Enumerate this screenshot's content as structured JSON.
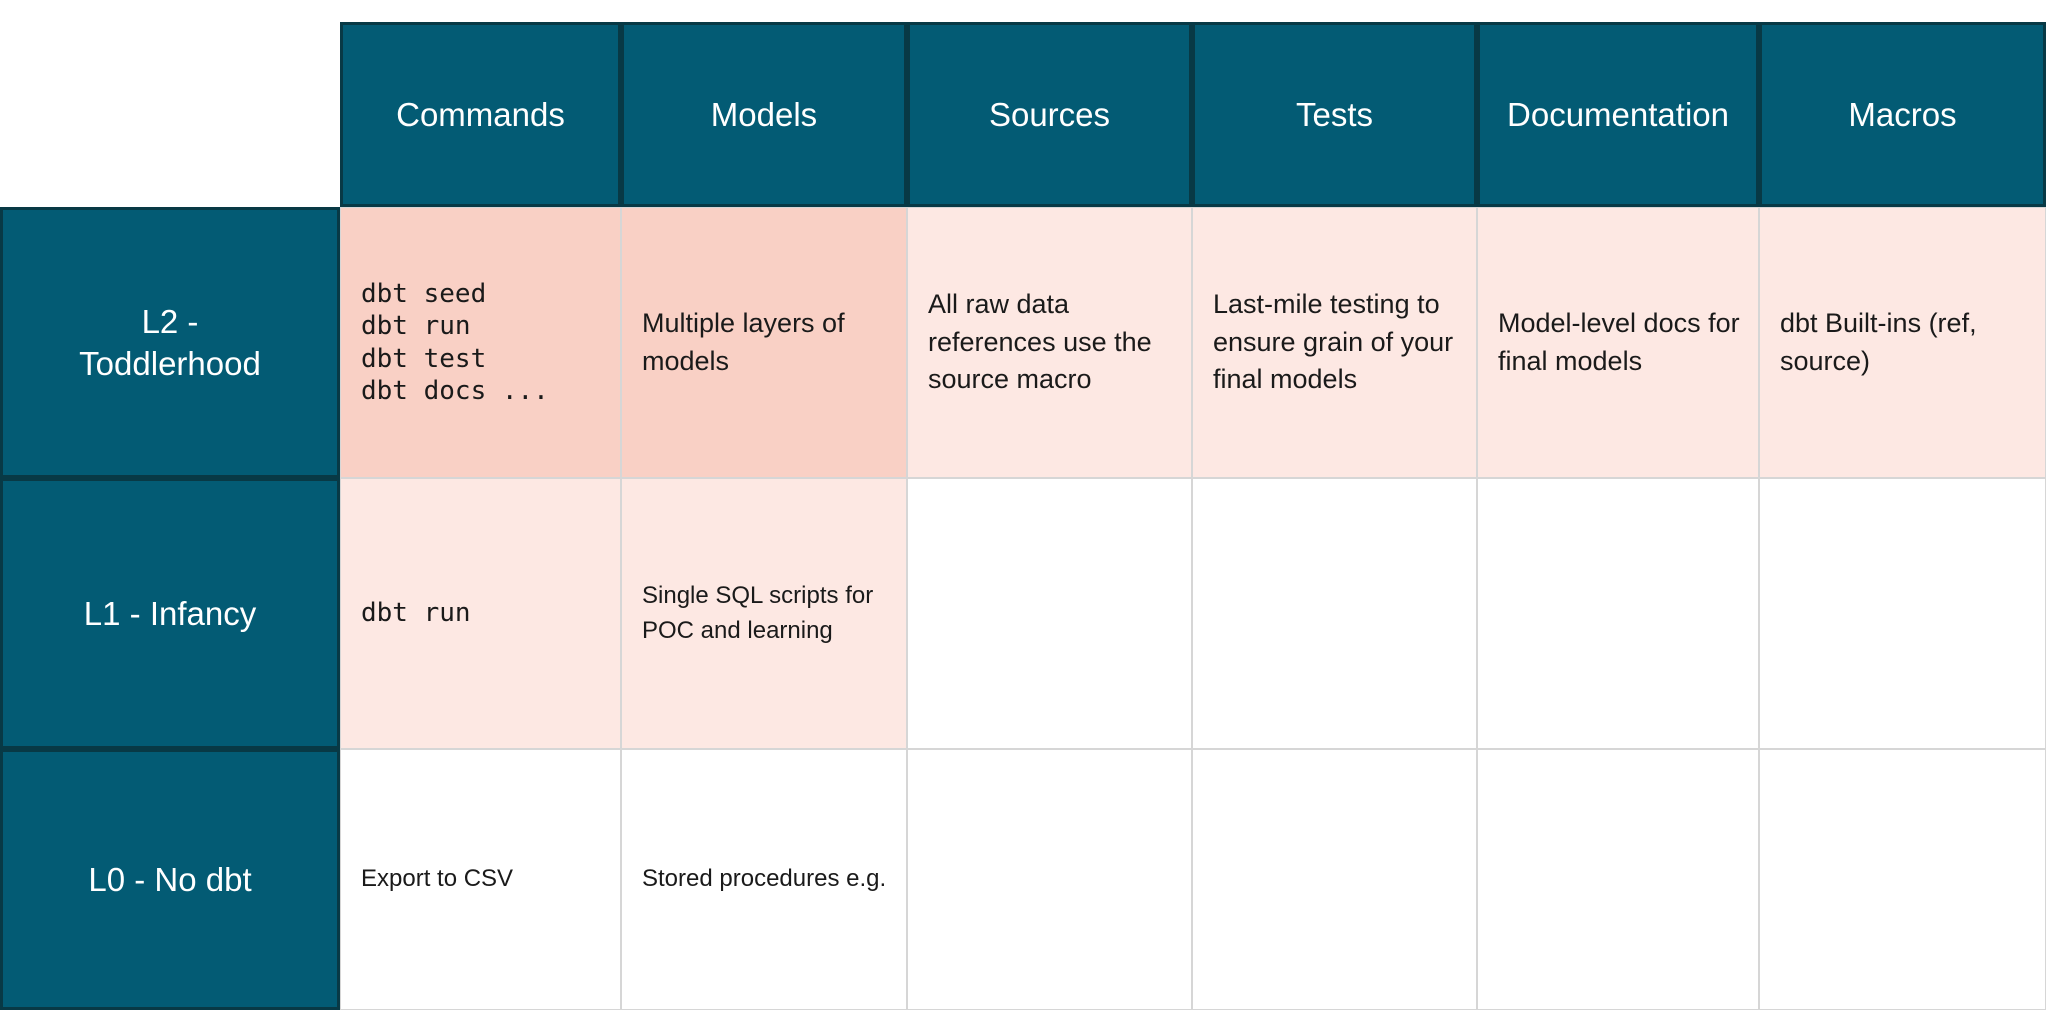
{
  "title": "dbt maturity levels table",
  "colors": {
    "teal_header": "#035b74",
    "teal_border": "#083945",
    "highlight_strong": "#f9d0c5",
    "highlight_soft": "#fde8e3",
    "grid_line": "#d6d6d6",
    "header_text": "#ffffff",
    "body_text": "#1a1a1a"
  },
  "chart_data": {
    "type": "table",
    "columns": [
      "",
      "Commands",
      "Models",
      "Sources",
      "Tests",
      "Documentation",
      "Macros"
    ],
    "rows": [
      [
        "L2 - Toddlerhood",
        "dbt seed\ndbt run\ndbt test\ndbt docs ...",
        "Multiple layers of models",
        "All raw data references use the source macro",
        "Last-mile testing to ensure grain of your final models",
        "Model-level docs for final models",
        "dbt Built-ins (ref, source)"
      ],
      [
        "L1 - Infancy",
        "dbt run",
        "Single SQL scripts for POC and learning",
        "",
        "",
        "",
        ""
      ],
      [
        "L0 - No dbt",
        "Export to CSV",
        "Stored procedures e.g.",
        "",
        "",
        "",
        ""
      ]
    ],
    "notes": "Cells Commands/Models at L2 shaded strong pink; Sources/Tests/Documentation/Macros at L2 and Commands/Models at L1 shaded soft pink; remaining cells white. Command cells rendered in monospace."
  }
}
